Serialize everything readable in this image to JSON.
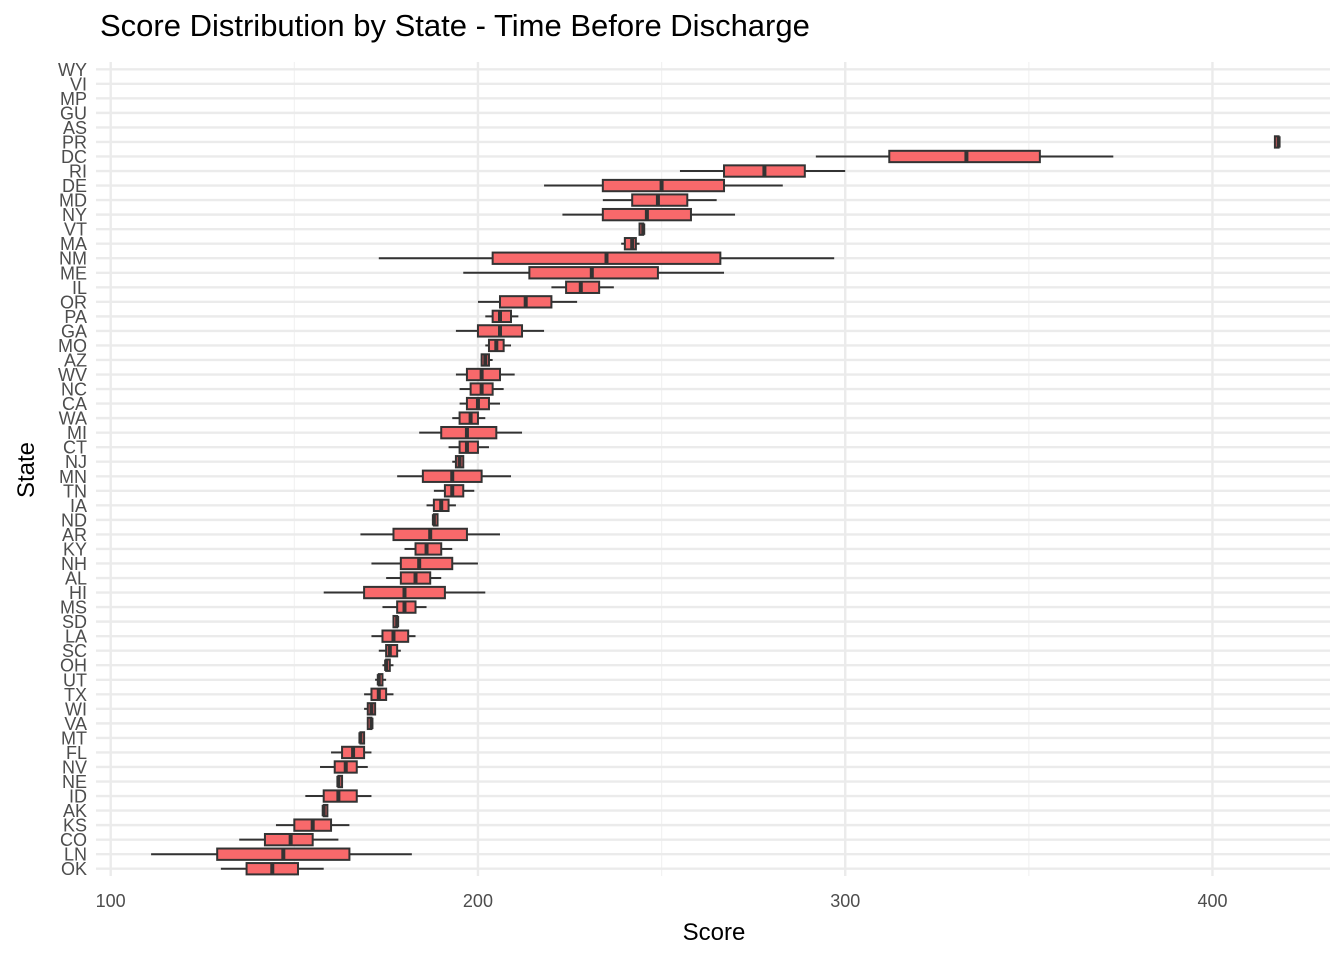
{
  "chart_data": {
    "type": "boxplot",
    "orientation": "horizontal",
    "title": "Score Distribution by State - Time Before Discharge",
    "xlabel": "Score",
    "ylabel": "State",
    "xlim": [
      96,
      432
    ],
    "xticks": [
      100,
      200,
      300,
      400
    ],
    "grid": true,
    "box_color": "#f8696b",
    "states": [
      "OK",
      "LN",
      "CO",
      "KS",
      "AK",
      "ID",
      "NE",
      "NV",
      "FL",
      "MT",
      "VA",
      "WI",
      "TX",
      "UT",
      "OH",
      "SC",
      "LA",
      "SD",
      "MS",
      "HI",
      "AL",
      "NH",
      "KY",
      "AR",
      "ND",
      "IA",
      "TN",
      "MN",
      "NJ",
      "CT",
      "MI",
      "WA",
      "CA",
      "NC",
      "WV",
      "AZ",
      "MO",
      "GA",
      "PA",
      "OR",
      "IL",
      "ME",
      "NM",
      "MA",
      "VT",
      "NY",
      "MD",
      "DE",
      "RI",
      "DC",
      "PR",
      "AS",
      "GU",
      "MP",
      "VI",
      "WY"
    ],
    "boxes": [
      {
        "state": "OK",
        "min": 130,
        "q1": 137,
        "median": 144,
        "q3": 151,
        "max": 158
      },
      {
        "state": "LN",
        "min": 111,
        "q1": 129,
        "median": 147,
        "q3": 165,
        "max": 182
      },
      {
        "state": "CO",
        "min": 135,
        "q1": 142,
        "median": 149,
        "q3": 155,
        "max": 162
      },
      {
        "state": "KS",
        "min": 145,
        "q1": 150,
        "median": 155,
        "q3": 160,
        "max": 165
      },
      {
        "state": "AK",
        "min": 158,
        "q1": 158,
        "median": 158,
        "q3": 159,
        "max": 159
      },
      {
        "state": "ID",
        "min": 153,
        "q1": 158,
        "median": 162,
        "q3": 167,
        "max": 171
      },
      {
        "state": "NE",
        "min": 162,
        "q1": 162,
        "median": 162,
        "q3": 163,
        "max": 163
      },
      {
        "state": "NV",
        "min": 157,
        "q1": 161,
        "median": 164,
        "q3": 167,
        "max": 170
      },
      {
        "state": "FL",
        "min": 160,
        "q1": 163,
        "median": 166,
        "q3": 169,
        "max": 171
      },
      {
        "state": "MT",
        "min": 168,
        "q1": 168,
        "median": 168,
        "q3": 169,
        "max": 169
      },
      {
        "state": "VA",
        "min": 170,
        "q1": 170,
        "median": 171,
        "q3": 171,
        "max": 171
      },
      {
        "state": "WI",
        "min": 169,
        "q1": 170,
        "median": 171,
        "q3": 172,
        "max": 172
      },
      {
        "state": "TX",
        "min": 169,
        "q1": 171,
        "median": 173,
        "q3": 175,
        "max": 177
      },
      {
        "state": "UT",
        "min": 172,
        "q1": 173,
        "median": 173,
        "q3": 174,
        "max": 175
      },
      {
        "state": "OH",
        "min": 174,
        "q1": 175,
        "median": 175,
        "q3": 176,
        "max": 177
      },
      {
        "state": "SC",
        "min": 173,
        "q1": 175,
        "median": 176,
        "q3": 178,
        "max": 179
      },
      {
        "state": "LA",
        "min": 171,
        "q1": 174,
        "median": 177,
        "q3": 181,
        "max": 183
      },
      {
        "state": "SD",
        "min": 177,
        "q1": 177,
        "median": 178,
        "q3": 178,
        "max": 178
      },
      {
        "state": "MS",
        "min": 174,
        "q1": 178,
        "median": 180,
        "q3": 183,
        "max": 186
      },
      {
        "state": "HI",
        "min": 158,
        "q1": 169,
        "median": 180,
        "q3": 191,
        "max": 202
      },
      {
        "state": "AL",
        "min": 175,
        "q1": 179,
        "median": 183,
        "q3": 187,
        "max": 190
      },
      {
        "state": "NH",
        "min": 171,
        "q1": 179,
        "median": 184,
        "q3": 193,
        "max": 200
      },
      {
        "state": "KY",
        "min": 180,
        "q1": 183,
        "median": 186,
        "q3": 190,
        "max": 193
      },
      {
        "state": "AR",
        "min": 168,
        "q1": 177,
        "median": 187,
        "q3": 197,
        "max": 206
      },
      {
        "state": "ND",
        "min": 188,
        "q1": 188,
        "median": 188,
        "q3": 189,
        "max": 189
      },
      {
        "state": "IA",
        "min": 186,
        "q1": 188,
        "median": 190,
        "q3": 192,
        "max": 194
      },
      {
        "state": "TN",
        "min": 188,
        "q1": 191,
        "median": 193,
        "q3": 196,
        "max": 199
      },
      {
        "state": "MN",
        "min": 178,
        "q1": 185,
        "median": 193,
        "q3": 201,
        "max": 209
      },
      {
        "state": "NJ",
        "min": 193,
        "q1": 194,
        "median": 195,
        "q3": 196,
        "max": 196
      },
      {
        "state": "CT",
        "min": 192,
        "q1": 195,
        "median": 197,
        "q3": 200,
        "max": 203
      },
      {
        "state": "MI",
        "min": 184,
        "q1": 190,
        "median": 197,
        "q3": 205,
        "max": 212
      },
      {
        "state": "WA",
        "min": 193,
        "q1": 195,
        "median": 198,
        "q3": 200,
        "max": 202
      },
      {
        "state": "CA",
        "min": 195,
        "q1": 197,
        "median": 200,
        "q3": 203,
        "max": 206
      },
      {
        "state": "NC",
        "min": 195,
        "q1": 198,
        "median": 201,
        "q3": 204,
        "max": 207
      },
      {
        "state": "WV",
        "min": 194,
        "q1": 197,
        "median": 201,
        "q3": 206,
        "max": 210
      },
      {
        "state": "AZ",
        "min": 201,
        "q1": 201,
        "median": 202,
        "q3": 203,
        "max": 204
      },
      {
        "state": "MO",
        "min": 202,
        "q1": 203,
        "median": 205,
        "q3": 207,
        "max": 209
      },
      {
        "state": "GA",
        "min": 194,
        "q1": 200,
        "median": 206,
        "q3": 212,
        "max": 218
      },
      {
        "state": "PA",
        "min": 202,
        "q1": 204,
        "median": 206,
        "q3": 209,
        "max": 211
      },
      {
        "state": "OR",
        "min": 200,
        "q1": 206,
        "median": 213,
        "q3": 220,
        "max": 227
      },
      {
        "state": "IL",
        "min": 220,
        "q1": 224,
        "median": 228,
        "q3": 233,
        "max": 237
      },
      {
        "state": "ME",
        "min": 196,
        "q1": 214,
        "median": 231,
        "q3": 249,
        "max": 267
      },
      {
        "state": "NM",
        "min": 173,
        "q1": 204,
        "median": 235,
        "q3": 266,
        "max": 297
      },
      {
        "state": "MA",
        "min": 239,
        "q1": 240,
        "median": 242,
        "q3": 243,
        "max": 244
      },
      {
        "state": "VT",
        "min": 244,
        "q1": 244,
        "median": 245,
        "q3": 245,
        "max": 245
      },
      {
        "state": "NY",
        "min": 223,
        "q1": 234,
        "median": 246,
        "q3": 258,
        "max": 270
      },
      {
        "state": "MD",
        "min": 234,
        "q1": 242,
        "median": 249,
        "q3": 257,
        "max": 265
      },
      {
        "state": "DE",
        "min": 218,
        "q1": 234,
        "median": 250,
        "q3": 267,
        "max": 283
      },
      {
        "state": "RI",
        "min": 255,
        "q1": 267,
        "median": 278,
        "q3": 289,
        "max": 300
      },
      {
        "state": "DC",
        "min": 292,
        "q1": 312,
        "median": 333,
        "q3": 353,
        "max": 373
      },
      {
        "state": "PR",
        "min": 417,
        "q1": 417,
        "median": 418,
        "q3": 418,
        "max": 418
      }
    ]
  }
}
